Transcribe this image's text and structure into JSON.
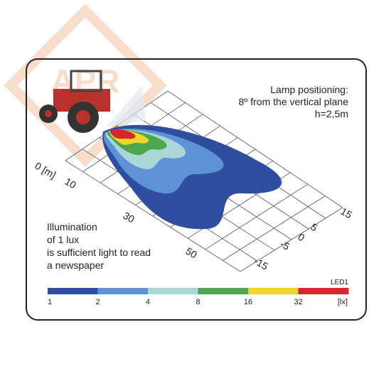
{
  "info": {
    "lines": [
      "Lamp positioning:",
      "8º from the vertical plane",
      "h=2,5m"
    ]
  },
  "note": {
    "lines": [
      "Illumination",
      "of 1 lux",
      "is sufficient light to read",
      "a newspaper"
    ]
  },
  "watermark": "APR",
  "distance_labels": [
    "0 [m]",
    "10",
    "30",
    "50"
  ],
  "lateral_labels": [
    "15",
    "5",
    "0",
    "-5",
    "-15"
  ],
  "legend": {
    "title": "LED1",
    "colors": [
      "#2f4ea0",
      "#5d93d6",
      "#a9d6d6",
      "#4da64d",
      "#f2d52b",
      "#d7262e"
    ],
    "labels": [
      "1",
      "2",
      "4",
      "8",
      "16",
      "32",
      "[lx]"
    ]
  }
}
